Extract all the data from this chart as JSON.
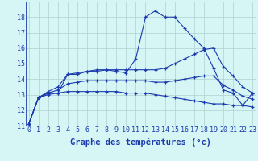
{
  "xlabel": "Graphe des températures (°c)",
  "background_color": "#d6f5f5",
  "line_color": "#1a3aad",
  "grid_color": "#b0d0d0",
  "hours": [
    0,
    1,
    2,
    3,
    4,
    5,
    6,
    7,
    8,
    9,
    10,
    11,
    12,
    13,
    14,
    15,
    16,
    17,
    18,
    19,
    20,
    21,
    22,
    23
  ],
  "temp_actual": [
    11.1,
    12.8,
    13.1,
    13.1,
    14.3,
    14.3,
    14.5,
    14.5,
    14.6,
    14.5,
    14.4,
    15.3,
    18.0,
    18.4,
    18.0,
    18.0,
    17.3,
    16.6,
    16.0,
    14.7,
    13.3,
    13.1,
    12.3,
    13.1
  ],
  "temp_max": [
    11.1,
    12.8,
    13.2,
    13.5,
    14.3,
    14.4,
    14.5,
    14.6,
    14.6,
    14.6,
    14.6,
    14.6,
    14.6,
    14.6,
    14.7,
    15.0,
    15.3,
    15.6,
    15.9,
    16.0,
    14.8,
    14.2,
    13.5,
    13.1
  ],
  "temp_min": [
    11.1,
    12.8,
    13.0,
    13.1,
    13.2,
    13.2,
    13.2,
    13.2,
    13.2,
    13.2,
    13.1,
    13.1,
    13.1,
    13.0,
    12.9,
    12.8,
    12.7,
    12.6,
    12.5,
    12.4,
    12.4,
    12.3,
    12.3,
    12.2
  ],
  "temp_avg": [
    11.1,
    12.8,
    13.1,
    13.3,
    13.7,
    13.8,
    13.9,
    13.9,
    13.9,
    13.9,
    13.9,
    13.9,
    13.9,
    13.8,
    13.8,
    13.9,
    14.0,
    14.1,
    14.2,
    14.2,
    13.6,
    13.3,
    12.9,
    12.7
  ],
  "ylim": [
    11,
    19
  ],
  "yticks": [
    11,
    12,
    13,
    14,
    15,
    16,
    17,
    18
  ],
  "axis_color": "#1a3aad",
  "xlabel_fontsize": 7.5,
  "tick_fontsize": 6.0
}
